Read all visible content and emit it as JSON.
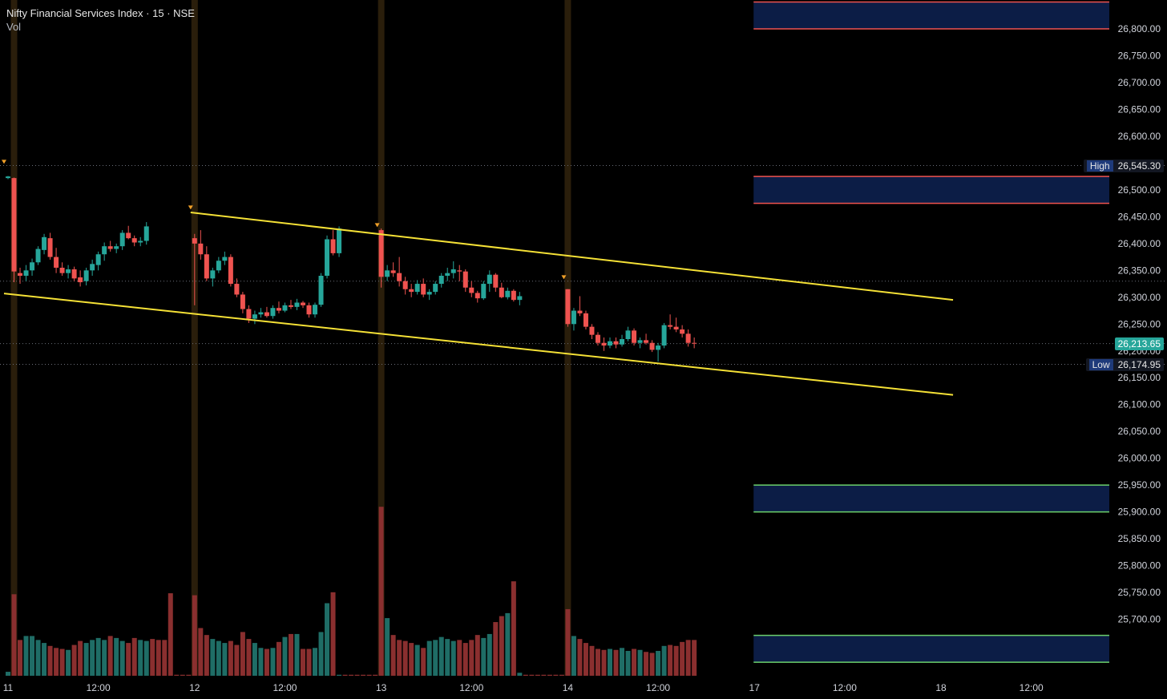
{
  "header": {
    "symbol": "Nifty Financial Services Index",
    "sep1": "·",
    "interval": "15",
    "sep2": "·",
    "exchange": "NSE",
    "volume_label": "Vol"
  },
  "colors": {
    "background": "#000000",
    "up": "#26a69a",
    "down": "#ef5350",
    "up_volume": "#1f6d66",
    "down_volume": "#8a2f2f",
    "trendline": "#f5e136",
    "zone_fill": "#0c1d46",
    "resistance_border": "#ef5350",
    "support_border": "#6bd06b",
    "session_band": "#2a1e0b"
  },
  "chart_data": {
    "type": "candlestick",
    "title": "Nifty Financial Services Index · 15 · NSE",
    "y_ticks": [
      "26,800.00",
      "26,750.00",
      "26,700.00",
      "26,650.00",
      "26,600.00",
      "26,550.00",
      "26,500.00",
      "26,450.00",
      "26,400.00",
      "26,350.00",
      "26,300.00",
      "26,250.00",
      "26,200.00",
      "26,150.00",
      "26,100.00",
      "26,050.00",
      "26,000.00",
      "25,950.00",
      "25,900.00",
      "25,850.00",
      "25,800.00",
      "25,750.00",
      "25,700.00"
    ],
    "ylim": [
      25620,
      26850
    ],
    "x_ticks": [
      {
        "label": "11",
        "bar": 0
      },
      {
        "label": "12:00",
        "bar": 15
      },
      {
        "label": "12",
        "bar": 31
      },
      {
        "label": "12:00",
        "bar": 46
      },
      {
        "label": "13",
        "bar": 62
      },
      {
        "label": "12:00",
        "bar": 77
      },
      {
        "label": "14",
        "bar": 93
      },
      {
        "label": "12:00",
        "bar": 108
      },
      {
        "label": "17",
        "bar": 124
      },
      {
        "label": "12:00",
        "bar": 139
      },
      {
        "label": "18",
        "bar": 155
      },
      {
        "label": "12:00",
        "bar": 170
      }
    ],
    "markers": {
      "high": {
        "label": "High",
        "value": 26545.3,
        "text": "26,545.30"
      },
      "low": {
        "label": "Low",
        "value": 26174.95,
        "text": "26,174.95"
      },
      "last": {
        "value": 26213.65,
        "text": "26,213.65"
      }
    },
    "zones": [
      {
        "type": "resistance",
        "from": 26800,
        "to": 26850
      },
      {
        "type": "resistance",
        "from": 26475,
        "to": 26525
      },
      {
        "type": "support",
        "from": 25900,
        "to": 25950
      },
      {
        "type": "support",
        "from": 25620,
        "to": 25670
      }
    ],
    "trendlines": [
      {
        "from": {
          "bar": 31,
          "price": 26458
        },
        "to": {
          "bar": 157,
          "price": 26295
        }
      },
      {
        "from": {
          "bar": 0,
          "price": 26307
        },
        "to": {
          "bar": 157,
          "price": 26118
        }
      }
    ],
    "session_starts": [
      1,
      31,
      62,
      93
    ],
    "candles": [
      [
        0,
        26522,
        26526,
        26520,
        26525
      ],
      [
        1,
        26522,
        26523,
        26328,
        26348
      ],
      [
        2,
        26345,
        26355,
        26325,
        26340
      ],
      [
        3,
        26340,
        26360,
        26330,
        26350
      ],
      [
        4,
        26350,
        26372,
        26340,
        26365
      ],
      [
        5,
        26365,
        26395,
        26360,
        26390
      ],
      [
        6,
        26388,
        26418,
        26380,
        26412
      ],
      [
        7,
        26410,
        26420,
        26370,
        26375
      ],
      [
        8,
        26375,
        26392,
        26345,
        26355
      ],
      [
        9,
        26355,
        26365,
        26340,
        26345
      ],
      [
        10,
        26345,
        26360,
        26335,
        26352
      ],
      [
        11,
        26352,
        26357,
        26330,
        26335
      ],
      [
        12,
        26337,
        26350,
        26320,
        26328
      ],
      [
        13,
        26330,
        26355,
        26322,
        26350
      ],
      [
        14,
        26350,
        26370,
        26340,
        26362
      ],
      [
        15,
        26360,
        26385,
        26350,
        26380
      ],
      [
        16,
        26380,
        26402,
        26368,
        26395
      ],
      [
        17,
        26395,
        26405,
        26385,
        26390
      ],
      [
        18,
        26390,
        26400,
        26382,
        26395
      ],
      [
        19,
        26395,
        26425,
        26388,
        26420
      ],
      [
        20,
        26420,
        26433,
        26408,
        26410
      ],
      [
        21,
        26410,
        26415,
        26395,
        26402
      ],
      [
        22,
        26402,
        26412,
        26395,
        26405
      ],
      [
        23,
        26405,
        26440,
        26398,
        26432
      ],
      [
        31,
        26410,
        26418,
        26285,
        26400
      ],
      [
        32,
        26400,
        26425,
        26370,
        26380
      ],
      [
        33,
        26380,
        26395,
        26330,
        26335
      ],
      [
        34,
        26335,
        26355,
        26320,
        26350
      ],
      [
        35,
        26350,
        26375,
        26345,
        26368
      ],
      [
        36,
        26368,
        26385,
        26360,
        26375
      ],
      [
        37,
        26375,
        26380,
        26320,
        26325
      ],
      [
        38,
        26325,
        26335,
        26300,
        26305
      ],
      [
        39,
        26305,
        26310,
        26270,
        26278
      ],
      [
        40,
        26278,
        26285,
        26252,
        26260
      ],
      [
        41,
        26260,
        26275,
        26250,
        26268
      ],
      [
        42,
        26268,
        26280,
        26262,
        26272
      ],
      [
        43,
        26272,
        26282,
        26262,
        26265
      ],
      [
        44,
        26265,
        26285,
        26260,
        26280
      ],
      [
        45,
        26280,
        26292,
        26270,
        26275
      ],
      [
        46,
        26275,
        26290,
        26272,
        26285
      ],
      [
        47,
        26285,
        26295,
        26278,
        26282
      ],
      [
        48,
        26282,
        26297,
        26276,
        26290
      ],
      [
        49,
        26290,
        26293,
        26280,
        26285
      ],
      [
        50,
        26285,
        26290,
        26262,
        26268
      ],
      [
        51,
        26268,
        26290,
        26262,
        26286
      ],
      [
        52,
        26286,
        26345,
        26282,
        26340
      ],
      [
        53,
        26340,
        26415,
        26335,
        26408
      ],
      [
        54,
        26408,
        26425,
        26378,
        26382
      ],
      [
        55,
        26382,
        26432,
        26375,
        26428
      ],
      [
        62,
        26425,
        26428,
        26318,
        26338
      ],
      [
        63,
        26338,
        26360,
        26330,
        26350
      ],
      [
        64,
        26350,
        26365,
        26338,
        26345
      ],
      [
        65,
        26345,
        26375,
        26320,
        26330
      ],
      [
        66,
        26330,
        26338,
        26305,
        26315
      ],
      [
        67,
        26315,
        26325,
        26300,
        26310
      ],
      [
        68,
        26310,
        26332,
        26305,
        26325
      ],
      [
        69,
        26325,
        26335,
        26300,
        26305
      ],
      [
        70,
        26305,
        26315,
        26295,
        26310
      ],
      [
        71,
        26310,
        26330,
        26305,
        26325
      ],
      [
        72,
        26325,
        26345,
        26318,
        26340
      ],
      [
        73,
        26340,
        26355,
        26330,
        26345
      ],
      [
        74,
        26345,
        26367,
        26335,
        26352
      ],
      [
        75,
        26350,
        26360,
        26330,
        26348
      ],
      [
        76,
        26348,
        26352,
        26310,
        26318
      ],
      [
        77,
        26318,
        26330,
        26300,
        26308
      ],
      [
        78,
        26308,
        26312,
        26290,
        26298
      ],
      [
        79,
        26298,
        26330,
        26295,
        26325
      ],
      [
        80,
        26325,
        26350,
        26310,
        26342
      ],
      [
        81,
        26342,
        26345,
        26310,
        26318
      ],
      [
        82,
        26318,
        26327,
        26298,
        26300
      ],
      [
        83,
        26300,
        26318,
        26296,
        26312
      ],
      [
        84,
        26312,
        26315,
        26292,
        26295
      ],
      [
        85,
        26295,
        26310,
        26285,
        26302
      ],
      [
        93,
        26315,
        26315,
        26245,
        26250
      ],
      [
        94,
        26250,
        26280,
        26238,
        26275
      ],
      [
        95,
        26275,
        26302,
        26265,
        26270
      ],
      [
        96,
        26270,
        26275,
        26240,
        26245
      ],
      [
        97,
        26245,
        26250,
        26222,
        26230
      ],
      [
        98,
        26230,
        26235,
        26210,
        26215
      ],
      [
        99,
        26215,
        26225,
        26200,
        26210
      ],
      [
        100,
        26210,
        26225,
        26205,
        26218
      ],
      [
        101,
        26218,
        26225,
        26205,
        26212
      ],
      [
        102,
        26212,
        26230,
        26208,
        26222
      ],
      [
        103,
        26222,
        26245,
        26218,
        26238
      ],
      [
        104,
        26238,
        26242,
        26210,
        26215
      ],
      [
        105,
        26215,
        26225,
        26205,
        26220
      ],
      [
        106,
        26220,
        26232,
        26212,
        26215
      ],
      [
        107,
        26215,
        26220,
        26198,
        26202
      ],
      [
        108,
        26202,
        26215,
        26180,
        26210
      ],
      [
        109,
        26210,
        26252,
        26205,
        26248
      ],
      [
        110,
        26248,
        26268,
        26240,
        26245
      ],
      [
        111,
        26245,
        26262,
        26235,
        26240
      ],
      [
        112,
        26240,
        26248,
        26225,
        26232
      ],
      [
        113,
        26232,
        26240,
        26208,
        26215
      ],
      [
        114,
        26215,
        26225,
        26205,
        26213.65
      ]
    ],
    "volumes": [
      [
        0,
        0.04
      ],
      [
        1,
        0.82
      ],
      [
        2,
        0.36
      ],
      [
        3,
        0.4
      ],
      [
        4,
        0.4
      ],
      [
        5,
        0.36
      ],
      [
        6,
        0.33
      ],
      [
        7,
        0.3
      ],
      [
        8,
        0.28
      ],
      [
        9,
        0.27
      ],
      [
        10,
        0.26
      ],
      [
        11,
        0.31
      ],
      [
        12,
        0.35
      ],
      [
        13,
        0.33
      ],
      [
        14,
        0.36
      ],
      [
        15,
        0.38
      ],
      [
        16,
        0.36
      ],
      [
        17,
        0.4
      ],
      [
        18,
        0.38
      ],
      [
        19,
        0.35
      ],
      [
        20,
        0.33
      ],
      [
        21,
        0.38
      ],
      [
        22,
        0.36
      ],
      [
        23,
        0.35
      ],
      [
        24,
        0.37
      ],
      [
        25,
        0.36
      ],
      [
        26,
        0.36
      ],
      [
        27,
        0.83
      ],
      [
        28,
        0.01
      ],
      [
        29,
        0.01
      ],
      [
        30,
        0.01
      ],
      [
        31,
        0.81
      ],
      [
        32,
        0.48
      ],
      [
        33,
        0.41
      ],
      [
        34,
        0.37
      ],
      [
        35,
        0.35
      ],
      [
        36,
        0.33
      ],
      [
        37,
        0.35
      ],
      [
        38,
        0.31
      ],
      [
        39,
        0.44
      ],
      [
        40,
        0.37
      ],
      [
        41,
        0.33
      ],
      [
        42,
        0.28
      ],
      [
        43,
        0.27
      ],
      [
        44,
        0.28
      ],
      [
        45,
        0.34
      ],
      [
        46,
        0.39
      ],
      [
        47,
        0.42
      ],
      [
        48,
        0.42
      ],
      [
        49,
        0.27
      ],
      [
        50,
        0.27
      ],
      [
        51,
        0.28
      ],
      [
        52,
        0.44
      ],
      [
        53,
        0.73
      ],
      [
        54,
        0.84
      ],
      [
        55,
        0.01
      ],
      [
        56,
        0.01
      ],
      [
        57,
        0.01
      ],
      [
        58,
        0.01
      ],
      [
        59,
        0.01
      ],
      [
        60,
        0.01
      ],
      [
        61,
        0.01
      ],
      [
        62,
        1.7
      ],
      [
        63,
        0.58
      ],
      [
        64,
        0.41
      ],
      [
        65,
        0.36
      ],
      [
        66,
        0.35
      ],
      [
        67,
        0.33
      ],
      [
        68,
        0.31
      ],
      [
        69,
        0.28
      ],
      [
        70,
        0.35
      ],
      [
        71,
        0.36
      ],
      [
        72,
        0.39
      ],
      [
        73,
        0.37
      ],
      [
        74,
        0.35
      ],
      [
        75,
        0.36
      ],
      [
        76,
        0.33
      ],
      [
        77,
        0.36
      ],
      [
        78,
        0.41
      ],
      [
        79,
        0.38
      ],
      [
        80,
        0.42
      ],
      [
        81,
        0.54
      ],
      [
        82,
        0.6
      ],
      [
        83,
        0.63
      ],
      [
        84,
        0.95
      ],
      [
        85,
        0.03
      ],
      [
        86,
        0.01
      ],
      [
        87,
        0.01
      ],
      [
        88,
        0.01
      ],
      [
        89,
        0.01
      ],
      [
        90,
        0.01
      ],
      [
        91,
        0.01
      ],
      [
        92,
        0.01
      ],
      [
        93,
        0.67
      ],
      [
        94,
        0.4
      ],
      [
        95,
        0.37
      ],
      [
        96,
        0.33
      ],
      [
        97,
        0.3
      ],
      [
        98,
        0.27
      ],
      [
        99,
        0.26
      ],
      [
        100,
        0.27
      ],
      [
        101,
        0.26
      ],
      [
        102,
        0.28
      ],
      [
        103,
        0.25
      ],
      [
        104,
        0.27
      ],
      [
        105,
        0.26
      ],
      [
        106,
        0.24
      ],
      [
        107,
        0.23
      ],
      [
        108,
        0.25
      ],
      [
        109,
        0.3
      ],
      [
        110,
        0.31
      ],
      [
        111,
        0.3
      ],
      [
        112,
        0.34
      ],
      [
        113,
        0.36
      ],
      [
        114,
        0.36
      ]
    ]
  }
}
